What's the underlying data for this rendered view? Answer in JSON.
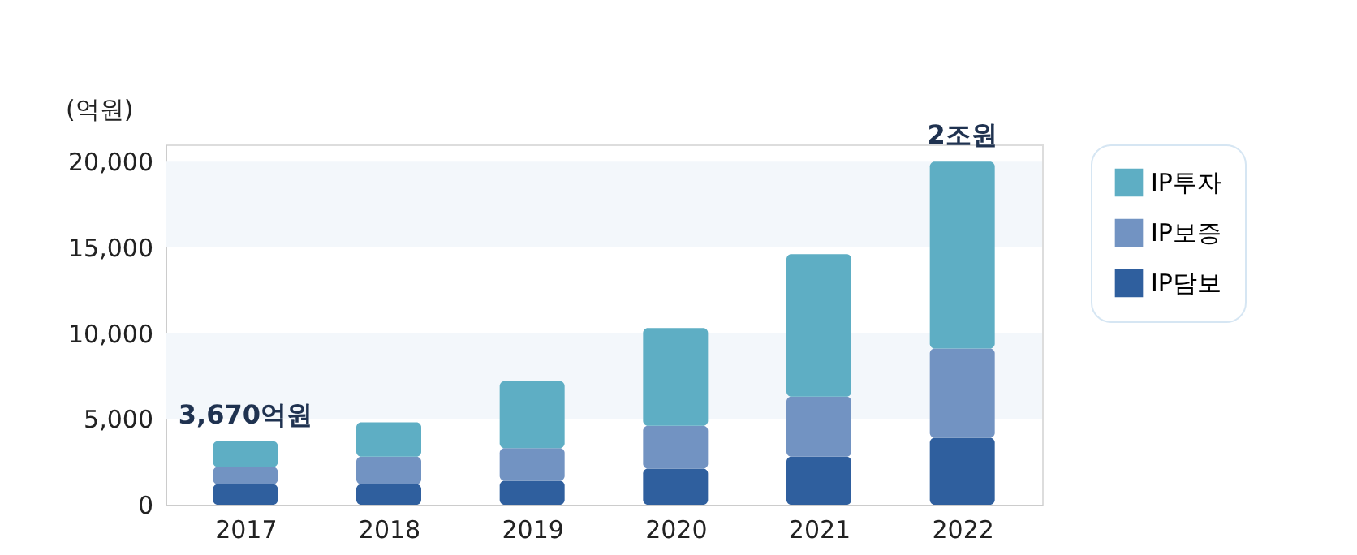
{
  "chart_data": {
    "type": "bar",
    "stacked": true,
    "ylabel": "(억원)",
    "categories": [
      "2017",
      "2018",
      "2019",
      "2020",
      "2021",
      "2022"
    ],
    "series": [
      {
        "name": "IP담보",
        "color": "#2f5f9e",
        "values": [
          1200,
          1200,
          1400,
          2100,
          2800,
          3900
        ]
      },
      {
        "name": "IP보증",
        "color": "#7293c2",
        "values": [
          1000,
          1600,
          1900,
          2500,
          3500,
          5200
        ]
      },
      {
        "name": "IP투자",
        "color": "#5eaec4",
        "values": [
          1500,
          2000,
          3900,
          5700,
          8300,
          10900
        ]
      }
    ],
    "ylim": [
      0,
      21000
    ],
    "yticks": [
      0,
      {
        "value": 5000,
        "label": "5,000"
      },
      {
        "value": 10000,
        "label": "10,000"
      },
      {
        "value": 15000,
        "label": "15,000"
      },
      {
        "value": 20000,
        "label": "20,000"
      }
    ],
    "grid": false,
    "bands": [
      {
        "axis": "y",
        "from": 5000,
        "to": 10000,
        "color": "#f3f7fb"
      },
      {
        "axis": "y",
        "from": 15000,
        "to": 20000,
        "color": "#f3f7fb"
      }
    ],
    "legend": "right",
    "annotations": [
      {
        "text": "3,670억원",
        "x": "2017",
        "y": 3670
      },
      {
        "text": "2조원",
        "x": "2022",
        "y": 20000
      }
    ]
  }
}
